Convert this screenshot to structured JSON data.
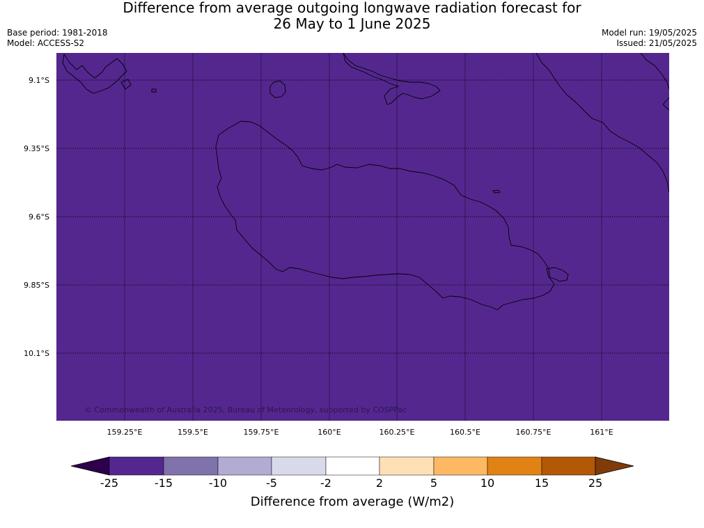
{
  "title": {
    "line1": "Difference from average outgoing longwave radiation forecast for",
    "line2": "26 May to 1 June 2025"
  },
  "meta": {
    "base_period": "Base period: 1981-2018",
    "model": "Model: ACCESS-S2",
    "model_run": "Model run: 19/05/2025",
    "issued": "Issued: 21/05/2025"
  },
  "map": {
    "fill_color": "#54278f",
    "lat_ticks": [
      "9.1°S",
      "9.35°S",
      "9.6°S",
      "9.85°S",
      "10.1°S"
    ],
    "lon_ticks": [
      "159.25°E",
      "159.5°E",
      "159.75°E",
      "160°E",
      "160.25°E",
      "160.5°E",
      "160.75°E",
      "161°E"
    ],
    "copyright": "© Commonwealth of Australia 2025, Bureau of Meteorology, supported by COSPPac"
  },
  "colorbar": {
    "label": "Difference from average (W/m2)",
    "ticks": [
      "-25",
      "-15",
      "-10",
      "-5",
      "-2",
      "2",
      "5",
      "10",
      "15",
      "25"
    ],
    "colors": [
      "#54278f",
      "#8073ac",
      "#b2abd2",
      "#d8daeb",
      "#ffffff",
      "#fee0b6",
      "#fdb863",
      "#e08214",
      "#b35806"
    ],
    "under_color": "#2d004b",
    "over_color": "#7f3b08"
  }
}
